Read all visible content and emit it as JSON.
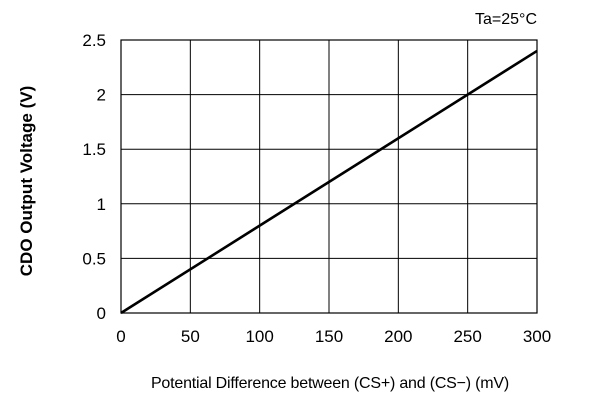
{
  "chart_data": {
    "type": "line",
    "title": "",
    "annotation": "Ta=25°C",
    "xlabel": "Potential Difference between (CS+) and (CS−) (mV)",
    "ylabel": "CDO Output Voltage (V)",
    "xlim": [
      0,
      300
    ],
    "ylim": [
      0,
      2.5
    ],
    "x_ticks": [
      0,
      50,
      100,
      150,
      200,
      250,
      300
    ],
    "y_ticks": [
      0,
      0.5,
      1,
      1.5,
      2,
      2.5
    ],
    "x_tick_labels": [
      "0",
      "50",
      "100",
      "150",
      "200",
      "250",
      "300"
    ],
    "y_tick_labels": [
      "0",
      "0.5",
      "1",
      "1.5",
      "2",
      "2.5"
    ],
    "grid": true,
    "series": [
      {
        "x": [
          0,
          300
        ],
        "y": [
          0,
          2.4
        ],
        "color": "#000000"
      }
    ]
  }
}
